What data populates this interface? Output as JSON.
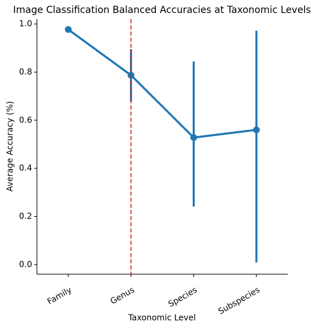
{
  "chart_data": {
    "type": "pointplot",
    "title": "Image Classification Balanced Accuracies at Taxonomic Levels",
    "x_label": "Taxonomic Level",
    "y_label": "Average Accuracy (%)",
    "categories": [
      "Family",
      "Genus",
      "Species",
      "Subspecies"
    ],
    "values": [
      0.977,
      0.787,
      0.528,
      0.56
    ],
    "ci_low": [
      null,
      0.679,
      0.241,
      0.009
    ],
    "ci_high": [
      null,
      0.895,
      0.844,
      0.972
    ],
    "color": "#1f77b4",
    "ylim": [
      -0.04,
      1.02
    ],
    "yticks": [
      {
        "value": 0,
        "label": "0.0"
      },
      0.2,
      0.4,
      0.6,
      0.8,
      {
        "value": 1,
        "label": "1.0"
      }
    ],
    "vline": {
      "x": 1,
      "color": "#d62728",
      "style": "dashed"
    }
  }
}
